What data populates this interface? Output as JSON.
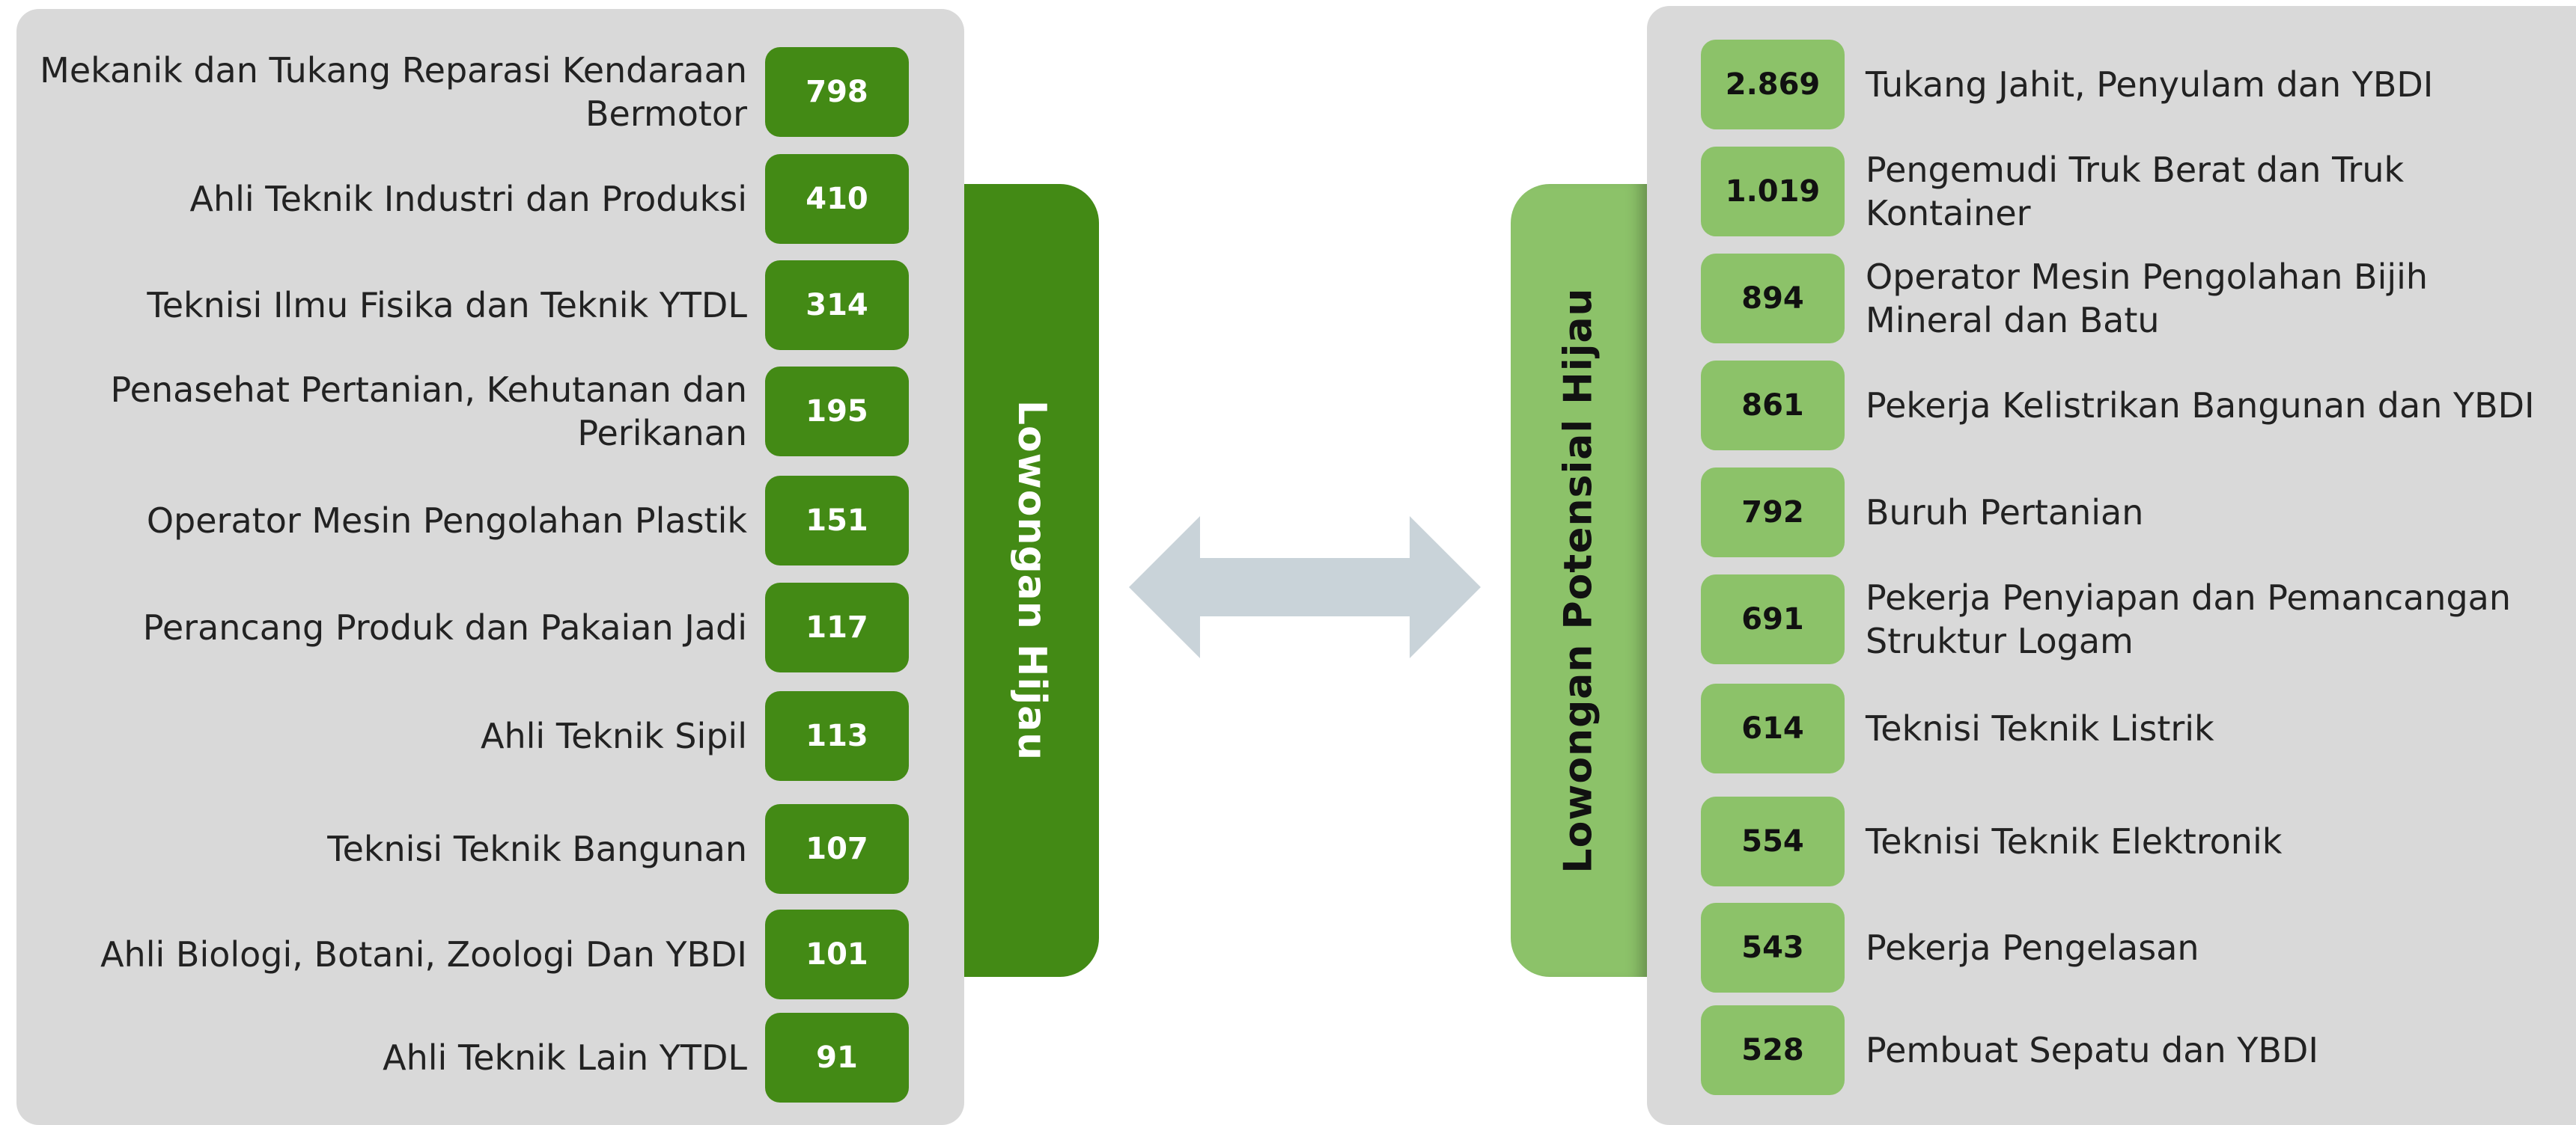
{
  "left": {
    "title": "Lowongan Hijau",
    "items": [
      {
        "label": "Mekanik dan Tukang Reparasi Kendaraan Bermotor",
        "value": "798"
      },
      {
        "label": "Ahli Teknik Industri dan Produksi",
        "value": "410"
      },
      {
        "label": "Teknisi Ilmu Fisika dan Teknik YTDL",
        "value": "314"
      },
      {
        "label": "Penasehat Pertanian, Kehutanan dan Perikanan",
        "value": "195"
      },
      {
        "label": "Operator Mesin Pengolahan Plastik",
        "value": "151"
      },
      {
        "label": "Perancang Produk dan Pakaian Jadi",
        "value": "117"
      },
      {
        "label": "Ahli Teknik Sipil",
        "value": "113"
      },
      {
        "label": "Teknisi Teknik Bangunan",
        "value": "107"
      },
      {
        "label": "Ahli Biologi, Botani, Zoologi Dan YBDI",
        "value": "101"
      },
      {
        "label": "Ahli Teknik Lain YTDL",
        "value": "91"
      }
    ]
  },
  "right": {
    "title": "Lowongan Potensial Hijau",
    "items": [
      {
        "label": "Tukang Jahit, Penyulam dan YBDI",
        "value": "2.869"
      },
      {
        "label": "Pengemudi Truk Berat dan Truk Kontainer",
        "value": "1.019"
      },
      {
        "label": "Operator Mesin Pengolahan Bijih Mineral dan Batu",
        "value": "894"
      },
      {
        "label": "Pekerja Kelistrikan Bangunan dan YBDI",
        "value": "861"
      },
      {
        "label": "Buruh Pertanian",
        "value": "792"
      },
      {
        "label": "Pekerja Penyiapan dan Pemancangan Struktur Logam",
        "value": "691"
      },
      {
        "label": "Teknisi Teknik Listrik",
        "value": "614"
      },
      {
        "label": "Teknisi Teknik Elektronik",
        "value": "554"
      },
      {
        "label": "Pekerja Pengelasan",
        "value": "543"
      },
      {
        "label": "Pembuat Sepatu dan YBDI",
        "value": "528"
      }
    ]
  },
  "colors": {
    "dark_green": "#438a15",
    "light_green": "#8cc269",
    "panel_gray": "#d9d9d9",
    "arrow": "#c9d3d9"
  }
}
